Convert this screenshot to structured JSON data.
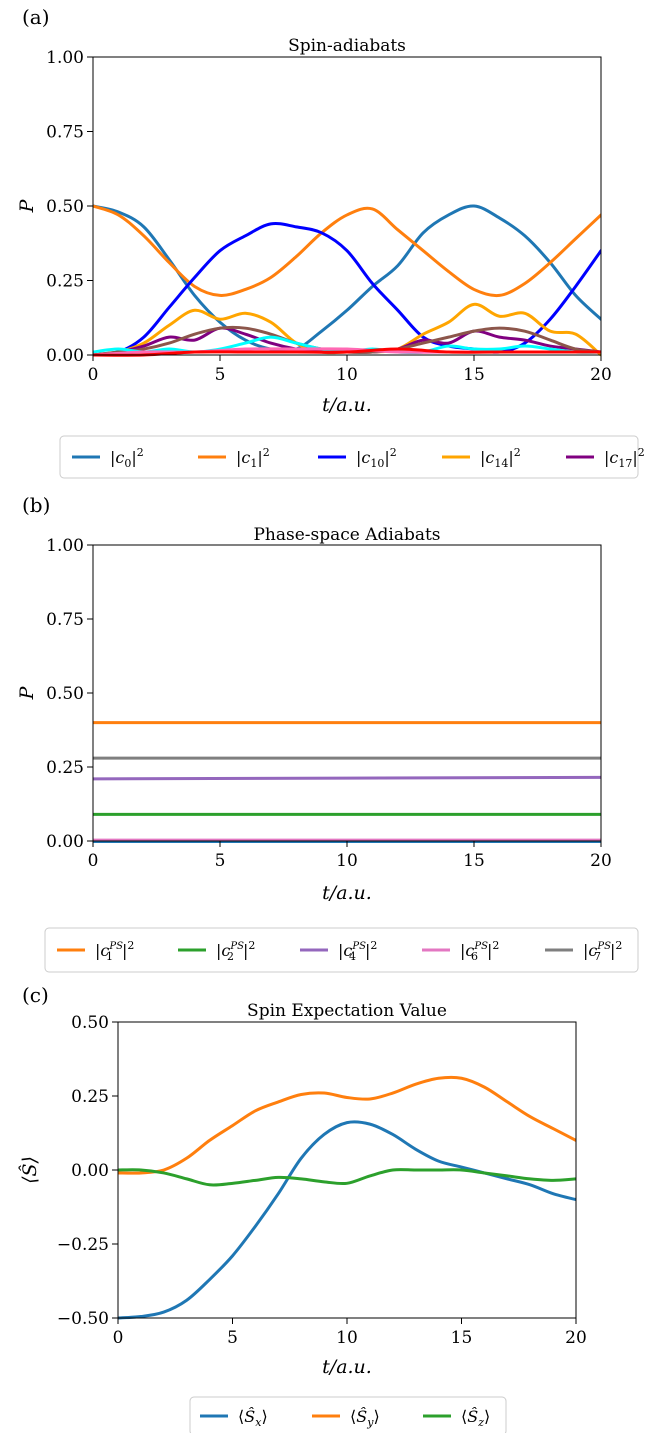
{
  "chart_data": [
    {
      "type": "line",
      "panel_label": "(a)",
      "title": "Spin-adiabats",
      "xlabel": "t/a.u.",
      "ylabel": "P",
      "xlim": [
        0,
        20
      ],
      "ylim": [
        0,
        1
      ],
      "xticks": [
        "0",
        "5",
        "10",
        "15",
        "20"
      ],
      "yticks": [
        "0.00",
        "0.25",
        "0.50",
        "0.75",
        "1.00"
      ],
      "grid": false,
      "legend": "below",
      "series": [
        {
          "name": "|c0|^2",
          "legend_main": "c",
          "legend_sub": "0",
          "color": "#1f77b4",
          "x": [
            0,
            1,
            2,
            3,
            4,
            5,
            6,
            7,
            8,
            9,
            10,
            11,
            12,
            13,
            14,
            15,
            16,
            17,
            18,
            19,
            20
          ],
          "y": [
            0.5,
            0.48,
            0.43,
            0.32,
            0.2,
            0.11,
            0.05,
            0.02,
            0.02,
            0.08,
            0.15,
            0.23,
            0.3,
            0.41,
            0.47,
            0.5,
            0.46,
            0.4,
            0.31,
            0.2,
            0.12
          ]
        },
        {
          "name": "|c1|^2",
          "legend_main": "c",
          "legend_sub": "1",
          "color": "#ff7f0e",
          "x": [
            0,
            1,
            2,
            3,
            4,
            5,
            6,
            7,
            8,
            9,
            10,
            11,
            12,
            13,
            14,
            15,
            16,
            17,
            18,
            19,
            20
          ],
          "y": [
            0.5,
            0.47,
            0.4,
            0.31,
            0.23,
            0.2,
            0.22,
            0.26,
            0.33,
            0.41,
            0.47,
            0.49,
            0.42,
            0.35,
            0.28,
            0.22,
            0.2,
            0.24,
            0.31,
            0.39,
            0.47
          ]
        },
        {
          "name": "|c10|^2",
          "legend_main": "c",
          "legend_sub": "10",
          "color": "#0000ff",
          "x": [
            0,
            1,
            2,
            3,
            4,
            5,
            6,
            7,
            8,
            9,
            10,
            11,
            12,
            13,
            14,
            15,
            16,
            17,
            18,
            19,
            20
          ],
          "y": [
            0.0,
            0.01,
            0.06,
            0.16,
            0.26,
            0.35,
            0.4,
            0.44,
            0.43,
            0.41,
            0.35,
            0.24,
            0.15,
            0.06,
            0.03,
            0.02,
            0.01,
            0.04,
            0.12,
            0.23,
            0.35
          ]
        },
        {
          "name": "|c14|^2",
          "legend_main": "c",
          "legend_sub": "14",
          "color": "#ffa500",
          "x": [
            0,
            1,
            2,
            3,
            4,
            5,
            6,
            7,
            8,
            9,
            10,
            11,
            12,
            13,
            14,
            15,
            16,
            17,
            18,
            19,
            20
          ],
          "y": [
            0.0,
            0.01,
            0.04,
            0.1,
            0.15,
            0.12,
            0.14,
            0.11,
            0.04,
            0.01,
            0.01,
            0.01,
            0.02,
            0.07,
            0.11,
            0.17,
            0.13,
            0.14,
            0.08,
            0.07,
            0.0
          ]
        },
        {
          "name": "|c17|^2",
          "legend_main": "c",
          "legend_sub": "17",
          "color": "#800080",
          "x": [
            0,
            1,
            2,
            3,
            4,
            5,
            6,
            7,
            8,
            9,
            10,
            11,
            12,
            13,
            14,
            15,
            16,
            17,
            18,
            19,
            20
          ],
          "y": [
            0.0,
            0.01,
            0.03,
            0.06,
            0.05,
            0.09,
            0.07,
            0.04,
            0.02,
            0.01,
            0.01,
            0.01,
            0.02,
            0.05,
            0.04,
            0.08,
            0.06,
            0.05,
            0.03,
            0.02,
            0.01
          ]
        },
        {
          "color": "#8c564b",
          "x": [
            0,
            1,
            2,
            3,
            4,
            5,
            6,
            7,
            8,
            9,
            10,
            11,
            12,
            13,
            14,
            15,
            16,
            17,
            18,
            19,
            20
          ],
          "y": [
            0.0,
            0.01,
            0.02,
            0.04,
            0.07,
            0.09,
            0.09,
            0.07,
            0.04,
            0.02,
            0.01,
            0.01,
            0.02,
            0.04,
            0.06,
            0.08,
            0.09,
            0.08,
            0.05,
            0.02,
            0.01
          ]
        },
        {
          "color": "#00ffff",
          "x": [
            0,
            1,
            2,
            3,
            4,
            5,
            6,
            7,
            8,
            9,
            10,
            11,
            12,
            13,
            14,
            15,
            16,
            17,
            18,
            19,
            20
          ],
          "y": [
            0.01,
            0.02,
            0.01,
            0.02,
            0.01,
            0.02,
            0.04,
            0.06,
            0.04,
            0.02,
            0.01,
            0.02,
            0.01,
            0.01,
            0.03,
            0.02,
            0.02,
            0.03,
            0.02,
            0.01,
            0.01
          ]
        },
        {
          "color": "#ff69b4",
          "x": [
            0,
            2,
            4,
            6,
            8,
            10,
            12,
            14,
            16,
            18,
            20
          ],
          "y": [
            0.0,
            0.01,
            0.01,
            0.02,
            0.02,
            0.02,
            0.01,
            0.01,
            0.01,
            0.01,
            0.01
          ]
        },
        {
          "color": "#ff0000",
          "x": [
            0,
            2,
            4,
            6,
            8,
            10,
            12,
            14,
            16,
            18,
            20
          ],
          "y": [
            0.0,
            0.0,
            0.01,
            0.01,
            0.01,
            0.01,
            0.02,
            0.01,
            0.01,
            0.01,
            0.01
          ]
        }
      ]
    },
    {
      "type": "line",
      "panel_label": "(b)",
      "title": "Phase-space Adiabats",
      "xlabel": "t/a.u.",
      "ylabel": "P",
      "xlim": [
        0,
        20
      ],
      "ylim": [
        0,
        1
      ],
      "xticks": [
        "0",
        "5",
        "10",
        "15",
        "20"
      ],
      "yticks": [
        "0.00",
        "0.25",
        "0.50",
        "0.75",
        "1.00"
      ],
      "grid": false,
      "legend": "below",
      "series": [
        {
          "name": "|c1^PS|^2",
          "legend_main": "c",
          "legend_sub": "1",
          "legend_sup": "PS",
          "color": "#ff7f0e",
          "x": [
            0,
            20
          ],
          "y": [
            0.4,
            0.4
          ]
        },
        {
          "name": "|c2^PS|^2",
          "legend_main": "c",
          "legend_sub": "2",
          "legend_sup": "PS",
          "color": "#2ca02c",
          "x": [
            0,
            20
          ],
          "y": [
            0.09,
            0.09
          ]
        },
        {
          "name": "|c4^PS|^2",
          "legend_main": "c",
          "legend_sub": "4",
          "legend_sup": "PS",
          "color": "#9467bd",
          "x": [
            0,
            20
          ],
          "y": [
            0.21,
            0.215
          ]
        },
        {
          "name": "|c6^PS|^2",
          "legend_main": "c",
          "legend_sub": "6",
          "legend_sup": "PS",
          "color": "#e377c2",
          "x": [
            0,
            20
          ],
          "y": [
            0.003,
            0.003
          ]
        },
        {
          "name": "|c7^PS|^2",
          "legend_main": "c",
          "legend_sub": "7",
          "legend_sup": "PS",
          "color": "#7f7f7f",
          "x": [
            0,
            20
          ],
          "y": [
            0.28,
            0.28
          ]
        },
        {
          "color": "#1f77b4",
          "x": [
            0,
            20
          ],
          "y": [
            -0.005,
            -0.005
          ]
        }
      ]
    },
    {
      "type": "line",
      "panel_label": "(c)",
      "title": "Spin Expectation Value",
      "xlabel": "t/a.u.",
      "ylabel": "⟨Ŝ⟩",
      "xlim": [
        0,
        20
      ],
      "ylim": [
        -0.5,
        0.5
      ],
      "xticks": [
        "0",
        "5",
        "10",
        "15",
        "20"
      ],
      "yticks": [
        "−0.50",
        "−0.25",
        "0.00",
        "0.25",
        "0.50"
      ],
      "grid": false,
      "legend": "below",
      "series": [
        {
          "name": "⟨Ŝx⟩",
          "legend_main": "Ŝ",
          "legend_sub": "x",
          "color": "#1f77b4",
          "x": [
            0,
            1,
            2,
            3,
            4,
            5,
            6,
            7,
            8,
            9,
            10,
            11,
            12,
            13,
            14,
            15,
            16,
            17,
            18,
            19,
            20
          ],
          "y": [
            -0.5,
            -0.495,
            -0.48,
            -0.44,
            -0.37,
            -0.29,
            -0.19,
            -0.08,
            0.04,
            0.12,
            0.16,
            0.155,
            0.12,
            0.07,
            0.03,
            0.01,
            -0.01,
            -0.03,
            -0.05,
            -0.08,
            -0.1
          ]
        },
        {
          "name": "⟨Ŝy⟩",
          "legend_main": "Ŝ",
          "legend_sub": "y",
          "color": "#ff7f0e",
          "x": [
            0,
            1,
            2,
            3,
            4,
            5,
            6,
            7,
            8,
            9,
            10,
            11,
            12,
            13,
            14,
            15,
            16,
            17,
            18,
            19,
            20
          ],
          "y": [
            -0.01,
            -0.01,
            0.0,
            0.04,
            0.1,
            0.15,
            0.2,
            0.23,
            0.255,
            0.26,
            0.245,
            0.24,
            0.26,
            0.29,
            0.31,
            0.31,
            0.28,
            0.23,
            0.18,
            0.14,
            0.1
          ]
        },
        {
          "name": "⟨Ŝz⟩",
          "legend_main": "Ŝ",
          "legend_sub": "z",
          "color": "#2ca02c",
          "x": [
            0,
            1,
            2,
            3,
            4,
            5,
            6,
            7,
            8,
            9,
            10,
            11,
            12,
            13,
            14,
            15,
            16,
            17,
            18,
            19,
            20
          ],
          "y": [
            0.0,
            0.0,
            -0.01,
            -0.03,
            -0.05,
            -0.045,
            -0.035,
            -0.025,
            -0.03,
            -0.04,
            -0.045,
            -0.02,
            0.0,
            0.0,
            0.0,
            0.0,
            -0.01,
            -0.02,
            -0.03,
            -0.035,
            -0.03
          ]
        }
      ]
    }
  ]
}
